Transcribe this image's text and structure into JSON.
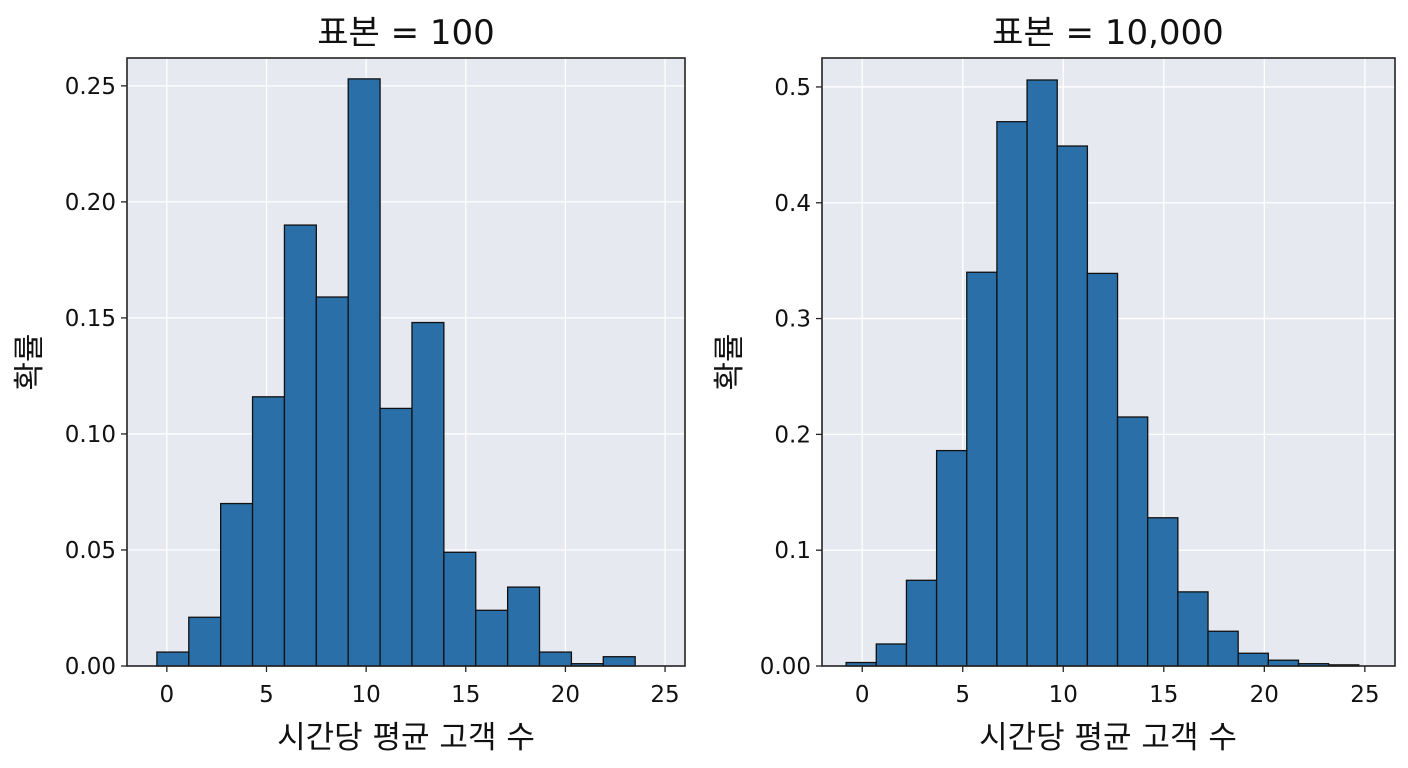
{
  "chart_data": [
    {
      "type": "bar",
      "title": "표본 = 100",
      "xlabel": "시간당 평균 고객 수",
      "ylabel": "확률",
      "bin_width": 1.6,
      "x_start": -0.5,
      "values": [
        0.006,
        0.021,
        0.07,
        0.116,
        0.19,
        0.159,
        0.253,
        0.111,
        0.148,
        0.049,
        0.024,
        0.034,
        0.006,
        0.001,
        0.004
      ],
      "xlim": [
        -2,
        26
      ],
      "ylim": [
        0,
        0.262
      ],
      "xticks": [
        0,
        5,
        10,
        15,
        20,
        25
      ],
      "xtick_labels": [
        "0",
        "5",
        "10",
        "15",
        "20",
        "25"
      ],
      "yticks": [
        0,
        0.05,
        0.1,
        0.15,
        0.2,
        0.25
      ],
      "ytick_labels": [
        "0.00",
        "0.05",
        "0.10",
        "0.15",
        "0.20",
        "0.25"
      ],
      "grid": true,
      "bar_color": "#2a6fa8",
      "background": "#e7e9f0"
    },
    {
      "type": "bar",
      "title": "표본 = 10,000",
      "xlabel": "시간당 평균 고객 수",
      "ylabel": "확률",
      "bin_width": 1.5,
      "x_start": -0.8,
      "values": [
        0.003,
        0.019,
        0.074,
        0.186,
        0.34,
        0.47,
        0.506,
        0.449,
        0.339,
        0.215,
        0.128,
        0.064,
        0.03,
        0.011,
        0.005,
        0.002,
        0.001
      ],
      "xlim": [
        -2,
        26.5
      ],
      "ylim": [
        0,
        0.525
      ],
      "xticks": [
        0,
        5,
        10,
        15,
        20,
        25
      ],
      "xtick_labels": [
        "0",
        "5",
        "10",
        "15",
        "20",
        "25"
      ],
      "yticks": [
        0,
        0.1,
        0.2,
        0.3,
        0.4,
        0.5
      ],
      "ytick_labels": [
        "0.00",
        "0.1",
        "0.2",
        "0.3",
        "0.4",
        "0.5"
      ],
      "grid": true,
      "bar_color": "#2a6fa8",
      "background": "#e7e9f0"
    }
  ]
}
